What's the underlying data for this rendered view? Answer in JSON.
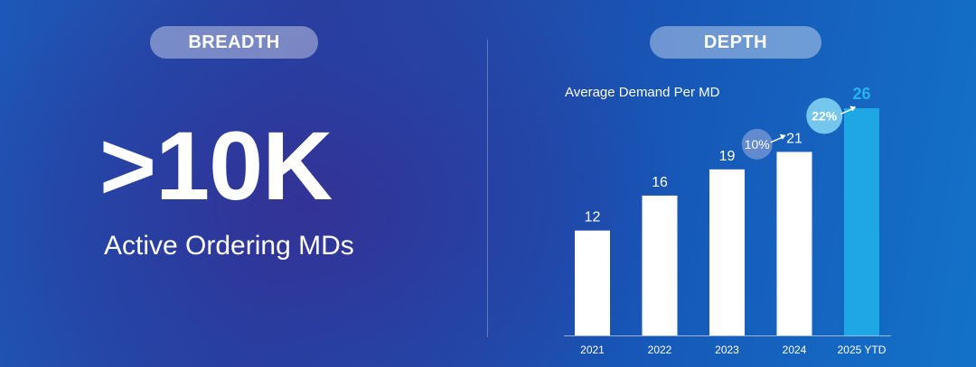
{
  "left": {
    "badge": "BREADTH",
    "stat": ">10K",
    "stat_label": "Active Ordering MDs"
  },
  "right": {
    "badge": "DEPTH"
  },
  "colors": {
    "bar": "#ffffff",
    "bar_highlight": "#1ea7e4",
    "highlight_label": "#2ab2f0",
    "growth_badge_1": "#6c8fd0",
    "growth_badge_2": "#7fd0f2"
  },
  "chart_data": {
    "type": "bar",
    "title": "Average Demand Per MD",
    "categories": [
      "2021",
      "2022",
      "2023",
      "2024",
      "2025 YTD"
    ],
    "values": [
      12,
      16,
      19,
      21,
      26
    ],
    "highlight_index": 4,
    "ylim": [
      0,
      26
    ],
    "grid": false,
    "annotations": [
      {
        "text": "10%",
        "between": [
          "2023",
          "2024"
        ]
      },
      {
        "text": "22%",
        "between": [
          "2024",
          "2025 YTD"
        ]
      }
    ]
  }
}
